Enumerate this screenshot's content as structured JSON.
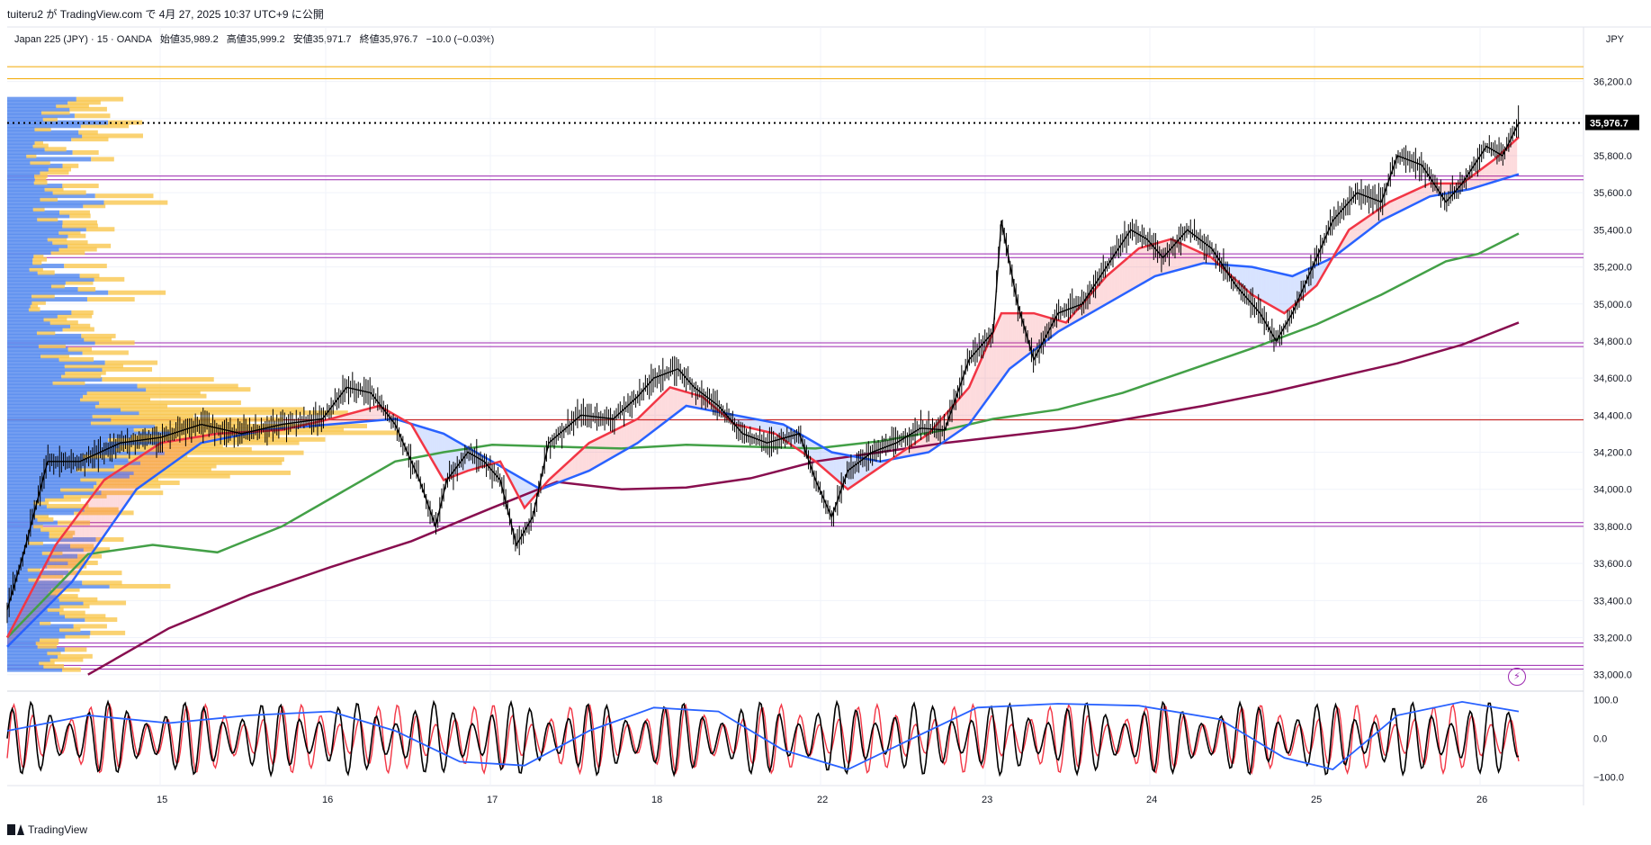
{
  "header": {
    "publish_line": "tuiteru2 が TradingView.com で 4月 27, 2025 10:37 UTC+9 に公開"
  },
  "legend": {
    "symbol": "Japan 225 (JPY) · 15 · OANDA",
    "open": "始値35,989.2",
    "high": "高値35,999.2",
    "low": "安値35,971.7",
    "close": "終値35,976.7",
    "change": "−10.0 (−0.03%)"
  },
  "axis": {
    "currency": "JPY",
    "price_ticks": [
      "36,200.0",
      "36,000.0",
      "35,800.0",
      "35,600.0",
      "35,400.0",
      "35,200.0",
      "35,000.0",
      "34,800.0",
      "34,600.0",
      "34,400.0",
      "34,200.0",
      "34,000.0",
      "33,800.0",
      "33,600.0",
      "33,400.0",
      "33,200.0",
      "33,000.0"
    ],
    "osc_ticks": [
      "100.0",
      "0.0",
      "−100.0"
    ],
    "date_ticks": [
      "15",
      "16",
      "17",
      "18",
      "22",
      "23",
      "24",
      "25",
      "26"
    ],
    "last_price_label": "35,976.7"
  },
  "footer": {
    "brand": "TradingView"
  },
  "icons": {
    "footer_logo": "tradingview-logo-icon",
    "alert": "lightning-bolt-icon"
  },
  "colors": {
    "price": "#000000",
    "ma_fast": "#f23645",
    "ma_mid": "#2962ff",
    "ma_slow": "#43a047",
    "ma_long": "#880e4f",
    "vp_up": "#5b8def",
    "vp_down": "#f9c74f",
    "hline_orange": "#f2a900",
    "hline_purple": "#9c27b0",
    "hline_red": "#c62828"
  },
  "chart_data": [
    {
      "type": "line",
      "name_note": "price chart with moving averages",
      "x_dates": [
        "15",
        "16",
        "17",
        "18",
        "22",
        "23",
        "24",
        "25",
        "26"
      ],
      "ylim": [
        32950,
        36300
      ],
      "series": [
        {
          "key": "price",
          "points": [
            [
              14.0,
              33350
            ],
            [
              14.1,
              33650
            ],
            [
              14.25,
              34150
            ],
            [
              14.45,
              34150
            ],
            [
              14.7,
              34250
            ],
            [
              14.95,
              34280
            ],
            [
              15.2,
              34350
            ],
            [
              15.45,
              34300
            ],
            [
              15.7,
              34350
            ],
            [
              15.95,
              34380
            ],
            [
              16.1,
              34550
            ],
            [
              16.25,
              34520
            ],
            [
              16.4,
              34350
            ],
            [
              16.55,
              34050
            ],
            [
              16.65,
              33800
            ],
            [
              16.72,
              34050
            ],
            [
              16.85,
              34200
            ],
            [
              16.95,
              34150
            ],
            [
              17.05,
              34050
            ],
            [
              17.15,
              33700
            ],
            [
              17.25,
              33850
            ],
            [
              17.35,
              34250
            ],
            [
              17.55,
              34400
            ],
            [
              17.75,
              34380
            ],
            [
              17.9,
              34500
            ],
            [
              18.0,
              34600
            ],
            [
              18.15,
              34650
            ],
            [
              18.25,
              34550
            ],
            [
              18.4,
              34450
            ],
            [
              18.55,
              34300
            ],
            [
              18.7,
              34250
            ],
            [
              18.9,
              34300
            ],
            [
              19.0,
              34050
            ],
            [
              19.1,
              33850
            ],
            [
              19.2,
              34100
            ],
            [
              19.35,
              34200
            ],
            [
              19.5,
              34250
            ],
            [
              19.65,
              34330
            ],
            [
              19.8,
              34320
            ],
            [
              19.95,
              34700
            ],
            [
              20.1,
              34850
            ],
            [
              20.15,
              35450
            ],
            [
              20.25,
              35000
            ],
            [
              20.35,
              34700
            ],
            [
              20.5,
              34950
            ],
            [
              20.65,
              35000
            ],
            [
              20.8,
              35200
            ],
            [
              20.95,
              35400
            ],
            [
              21.05,
              35350
            ],
            [
              21.15,
              35250
            ],
            [
              21.3,
              35400
            ],
            [
              21.45,
              35300
            ],
            [
              21.6,
              35100
            ],
            [
              21.75,
              34950
            ],
            [
              21.85,
              34800
            ],
            [
              21.95,
              34950
            ],
            [
              22.05,
              35150
            ],
            [
              22.2,
              35450
            ],
            [
              22.35,
              35600
            ],
            [
              22.5,
              35550
            ],
            [
              22.6,
              35800
            ],
            [
              22.75,
              35750
            ],
            [
              22.9,
              35550
            ],
            [
              23.0,
              35650
            ],
            [
              23.15,
              35850
            ],
            [
              23.25,
              35800
            ],
            [
              23.35,
              35976.7
            ]
          ]
        },
        {
          "key": "ma_fast",
          "points": [
            [
              14.0,
              33200
            ],
            [
              14.3,
              33700
            ],
            [
              14.6,
              34050
            ],
            [
              14.95,
              34250
            ],
            [
              15.3,
              34300
            ],
            [
              15.7,
              34320
            ],
            [
              16.0,
              34380
            ],
            [
              16.3,
              34450
            ],
            [
              16.5,
              34350
            ],
            [
              16.7,
              34050
            ],
            [
              16.85,
              34100
            ],
            [
              17.05,
              34150
            ],
            [
              17.2,
              33900
            ],
            [
              17.35,
              34050
            ],
            [
              17.6,
              34250
            ],
            [
              17.9,
              34380
            ],
            [
              18.1,
              34550
            ],
            [
              18.3,
              34500
            ],
            [
              18.5,
              34350
            ],
            [
              18.75,
              34300
            ],
            [
              19.0,
              34150
            ],
            [
              19.2,
              34000
            ],
            [
              19.45,
              34150
            ],
            [
              19.7,
              34300
            ],
            [
              19.95,
              34550
            ],
            [
              20.15,
              34950
            ],
            [
              20.35,
              34950
            ],
            [
              20.55,
              34900
            ],
            [
              20.8,
              35150
            ],
            [
              21.0,
              35300
            ],
            [
              21.2,
              35350
            ],
            [
              21.45,
              35250
            ],
            [
              21.7,
              35050
            ],
            [
              21.9,
              34950
            ],
            [
              22.1,
              35100
            ],
            [
              22.3,
              35400
            ],
            [
              22.55,
              35550
            ],
            [
              22.8,
              35650
            ],
            [
              23.0,
              35650
            ],
            [
              23.2,
              35780
            ],
            [
              23.35,
              35900
            ]
          ]
        },
        {
          "key": "ma_mid",
          "points": [
            [
              14.0,
              33150
            ],
            [
              14.4,
              33500
            ],
            [
              14.8,
              34000
            ],
            [
              15.2,
              34250
            ],
            [
              15.6,
              34320
            ],
            [
              16.0,
              34350
            ],
            [
              16.4,
              34380
            ],
            [
              16.7,
              34300
            ],
            [
              17.0,
              34150
            ],
            [
              17.3,
              34000
            ],
            [
              17.6,
              34100
            ],
            [
              17.9,
              34250
            ],
            [
              18.2,
              34450
            ],
            [
              18.5,
              34400
            ],
            [
              18.8,
              34350
            ],
            [
              19.1,
              34200
            ],
            [
              19.4,
              34150
            ],
            [
              19.7,
              34200
            ],
            [
              19.95,
              34350
            ],
            [
              20.2,
              34650
            ],
            [
              20.5,
              34850
            ],
            [
              20.8,
              35000
            ],
            [
              21.1,
              35150
            ],
            [
              21.4,
              35220
            ],
            [
              21.7,
              35200
            ],
            [
              21.95,
              35150
            ],
            [
              22.2,
              35250
            ],
            [
              22.5,
              35450
            ],
            [
              22.8,
              35580
            ],
            [
              23.05,
              35620
            ],
            [
              23.35,
              35700
            ]
          ]
        },
        {
          "key": "ma_slow",
          "points": [
            [
              14.0,
              33200
            ],
            [
              14.5,
              33650
            ],
            [
              14.9,
              33700
            ],
            [
              15.3,
              33660
            ],
            [
              15.7,
              33800
            ],
            [
              16.0,
              33950
            ],
            [
              16.4,
              34150
            ],
            [
              16.7,
              34200
            ],
            [
              17.0,
              34240
            ],
            [
              17.4,
              34230
            ],
            [
              17.8,
              34220
            ],
            [
              18.2,
              34240
            ],
            [
              18.6,
              34230
            ],
            [
              19.0,
              34220
            ],
            [
              19.4,
              34260
            ],
            [
              19.8,
              34320
            ],
            [
              20.1,
              34380
            ],
            [
              20.5,
              34430
            ],
            [
              20.9,
              34520
            ],
            [
              21.3,
              34640
            ],
            [
              21.7,
              34760
            ],
            [
              22.1,
              34890
            ],
            [
              22.5,
              35050
            ],
            [
              22.9,
              35230
            ],
            [
              23.1,
              35270
            ],
            [
              23.35,
              35380
            ]
          ]
        },
        {
          "key": "ma_long",
          "points": [
            [
              14.5,
              33000
            ],
            [
              15.0,
              33250
            ],
            [
              15.5,
              33430
            ],
            [
              16.0,
              33580
            ],
            [
              16.5,
              33720
            ],
            [
              17.0,
              33900
            ],
            [
              17.4,
              34040
            ],
            [
              17.8,
              34000
            ],
            [
              18.2,
              34010
            ],
            [
              18.6,
              34060
            ],
            [
              19.0,
              34150
            ],
            [
              19.4,
              34200
            ],
            [
              19.8,
              34250
            ],
            [
              20.2,
              34290
            ],
            [
              20.6,
              34330
            ],
            [
              21.0,
              34390
            ],
            [
              21.4,
              34450
            ],
            [
              21.8,
              34520
            ],
            [
              22.2,
              34600
            ],
            [
              22.6,
              34680
            ],
            [
              23.0,
              34780
            ],
            [
              23.35,
              34900
            ]
          ]
        }
      ]
    },
    {
      "type": "line",
      "name_note": "oscillator panel",
      "ylim": [
        -115,
        118
      ],
      "series": [
        {
          "key": "osc_black",
          "style": "oscillating"
        },
        {
          "key": "osc_red",
          "style": "oscillating"
        },
        {
          "key": "osc_blue",
          "points": [
            [
              14.0,
              20
            ],
            [
              14.5,
              60
            ],
            [
              15.0,
              40
            ],
            [
              15.5,
              60
            ],
            [
              16.0,
              70
            ],
            [
              16.4,
              20
            ],
            [
              16.8,
              -60
            ],
            [
              17.2,
              -70
            ],
            [
              17.6,
              20
            ],
            [
              18.0,
              80
            ],
            [
              18.4,
              70
            ],
            [
              18.8,
              -30
            ],
            [
              19.2,
              -80
            ],
            [
              19.6,
              0
            ],
            [
              20.0,
              80
            ],
            [
              20.5,
              90
            ],
            [
              21.0,
              85
            ],
            [
              21.5,
              50
            ],
            [
              21.9,
              -50
            ],
            [
              22.2,
              -80
            ],
            [
              22.6,
              60
            ],
            [
              23.0,
              95
            ],
            [
              23.35,
              70
            ]
          ]
        }
      ]
    }
  ]
}
